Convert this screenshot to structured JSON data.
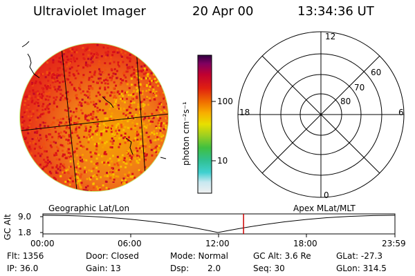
{
  "header": {
    "instrument": "Ultraviolet Imager",
    "date": "20 Apr 00",
    "time": "13:34:36 UT"
  },
  "colorbar": {
    "unit_label": "photon cm⁻²s⁻¹",
    "ticks": [
      "100",
      "10"
    ],
    "colors": [
      "#f0f0f0",
      "#c8e8f0",
      "#40d0d0",
      "#30c090",
      "#40c040",
      "#a0d020",
      "#e8e000",
      "#f8b000",
      "#f07000",
      "#e02010",
      "#c00030",
      "#800060",
      "#300040"
    ]
  },
  "polar_plot": {
    "mlt_labels": [
      "12",
      "18",
      "6",
      "0"
    ],
    "lat_labels": [
      "60",
      "70",
      "80"
    ]
  },
  "timeline": {
    "left_label": "Geographic Lat/Lon",
    "right_label": "Apex MLat/MLT",
    "axis_label": "GC Alt",
    "y_ticks": [
      "9.0",
      "1.8"
    ],
    "x_ticks": [
      "00:00",
      "06:00",
      "12:00",
      "18:00",
      "23:59"
    ],
    "marker_fraction": 0.57,
    "marker_color": "#cc0000"
  },
  "status": {
    "flt": "Flt: 1356",
    "ip": "IP: 36.0",
    "door": "Door: Closed",
    "gain": "Gain: 13",
    "mode": "Mode: Normal",
    "dsp_label": "Dsp:",
    "dsp_value": "2.0",
    "gcalt": "GC Alt: 3.6 Re",
    "seq": "Seq: 30",
    "glat": "GLat: -27.3",
    "glon": "GLon: 314.5"
  }
}
